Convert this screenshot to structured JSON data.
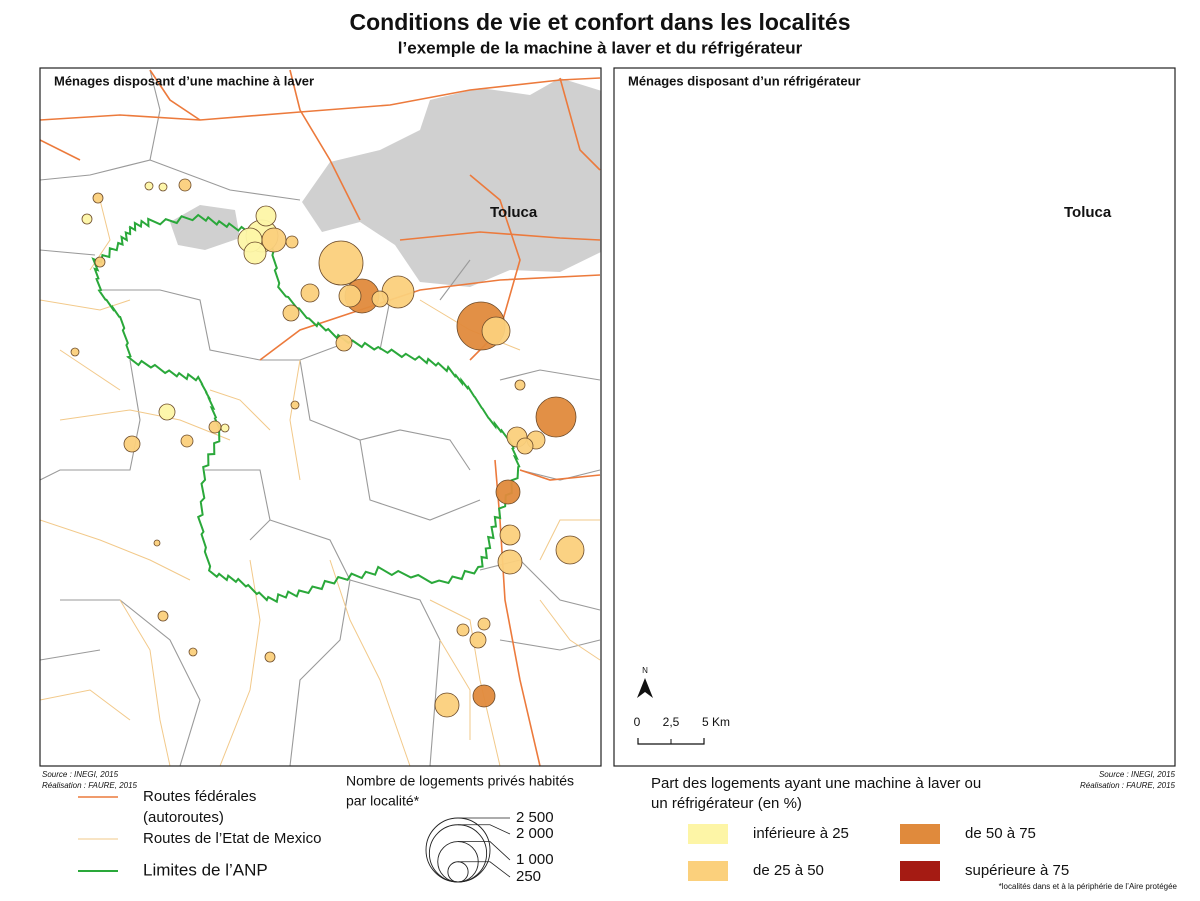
{
  "header": {
    "title": "Conditions de vie et confort dans les localités",
    "subtitle": "l’exemple de la machine à laver et du réfrigérateur"
  },
  "maps": [
    {
      "title": "Ménages disposant d’une machine à laver",
      "city": "Toluca",
      "source": "Source : INEGI, 2015",
      "author": "Réalisation : FAURE, 2015"
    },
    {
      "title": "Ménages disposant d’un réfrigérateur",
      "city": "Toluca",
      "source": "Source : INEGI, 2015",
      "author": "Réalisation : FAURE, 2015",
      "north": "N",
      "scale": [
        "0",
        "2,5",
        "5 Km"
      ]
    }
  ],
  "line_legend": [
    {
      "label": "Routes fédérales",
      "label2": "(autoroutes)"
    },
    {
      "label": "Routes de l’Etat de Mexico"
    },
    {
      "label": "Limites de l’ANP"
    }
  ],
  "size_legend": {
    "title": "Nombre de logements privés habités",
    "title2": "par localité*",
    "values": [
      {
        "value": 2500,
        "label": "2 500"
      },
      {
        "value": 2000,
        "label": "2 000"
      },
      {
        "value": 1000,
        "label": "1 000"
      },
      250
    ]
  },
  "color_legend": {
    "title": "Part des logements ayant une machine à laver ou",
    "title2": "un réfrigérateur (en %)",
    "classes": [
      {
        "label": "inférieure à 25",
        "color": "#fdf5a6"
      },
      {
        "label": "de 25 à 50",
        "color": "#fbd07c"
      },
      {
        "label": "de 50 à 75",
        "color": "#e08a3c"
      },
      {
        "label": "supérieure à 75",
        "color": "#a51b13"
      }
    ]
  },
  "footnote": "*localités dans et à la périphérie de l’Aire protégée"
}
